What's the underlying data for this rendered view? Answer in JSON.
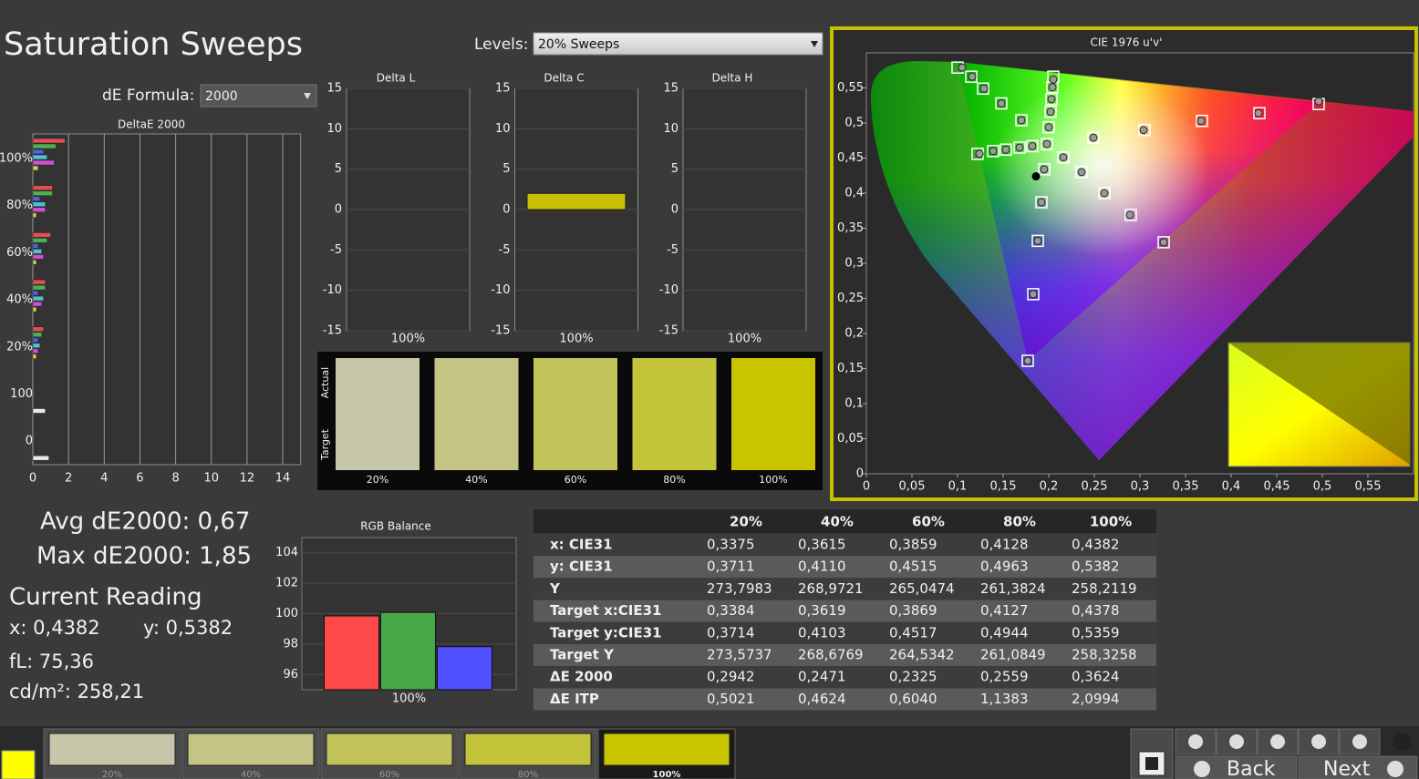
{
  "header": {
    "title": "Saturation Sweeps",
    "levels_label": "Levels:",
    "levels_value": "20% Sweeps",
    "formula_label": "dE Formula:",
    "formula_value": "2000"
  },
  "deltae": {
    "type": "hbar",
    "title": "DeltaE 2000",
    "categories": [
      "100%",
      "80%",
      "60%",
      "40%",
      "20%",
      "100",
      "0"
    ],
    "xlim": [
      0,
      15
    ],
    "xticks": [
      0,
      2,
      4,
      6,
      8,
      10,
      12,
      14
    ],
    "grid": true,
    "series": [
      {
        "color": "#e05050",
        "values": [
          1.8,
          1.1,
          1.0,
          0.7,
          0.6,
          null,
          null
        ]
      },
      {
        "color": "#50b050",
        "values": [
          1.3,
          1.1,
          0.8,
          0.7,
          0.5,
          null,
          null
        ]
      },
      {
        "color": "#5060e0",
        "values": [
          0.6,
          0.4,
          0.3,
          0.3,
          0.3,
          null,
          null
        ]
      },
      {
        "color": "#50c0d0",
        "values": [
          0.8,
          0.7,
          0.5,
          0.6,
          0.4,
          null,
          null
        ]
      },
      {
        "color": "#d050d0",
        "values": [
          1.2,
          0.7,
          0.6,
          0.5,
          0.3,
          null,
          null
        ]
      },
      {
        "color": "#d0d050",
        "values": [
          0.3,
          0.2,
          0.2,
          0.2,
          0.2,
          null,
          null
        ]
      },
      {
        "color": "#e8e8e8",
        "values": [
          null,
          null,
          null,
          null,
          null,
          0.7,
          0.9
        ]
      }
    ]
  },
  "delta_charts": [
    {
      "type": "bar",
      "title": "Delta L",
      "categories": [
        "100%"
      ],
      "values": [
        0
      ],
      "color": "#c8c000",
      "ylim": [
        -15,
        15
      ],
      "yticks": [
        15,
        10,
        5,
        0,
        -5,
        -10,
        -15
      ],
      "grid": true
    },
    {
      "type": "bar",
      "title": "Delta C",
      "categories": [
        "100%"
      ],
      "values": [
        2
      ],
      "color": "#c8c000",
      "ylim": [
        -15,
        15
      ],
      "yticks": [
        15,
        10,
        5,
        0,
        -5,
        -10,
        -15
      ],
      "grid": true
    },
    {
      "type": "bar",
      "title": "Delta H",
      "categories": [
        "100%"
      ],
      "values": [
        0
      ],
      "color": "#c8c000",
      "ylim": [
        -15,
        15
      ],
      "yticks": [
        15,
        10,
        5,
        0,
        -5,
        -10,
        -15
      ],
      "grid": true
    }
  ],
  "swatches": {
    "actual_label": "Actual",
    "target_label": "Target",
    "labels": [
      "20%",
      "40%",
      "60%",
      "80%",
      "100%"
    ],
    "actual_colors": [
      "#c6c6a8",
      "#c4c484",
      "#c3c35c",
      "#c4c43a",
      "#c8c400"
    ],
    "target_colors": [
      "#c6c6a8",
      "#c4c484",
      "#c3c35c",
      "#c4c43a",
      "#c8c400"
    ]
  },
  "stats": {
    "avg": "Avg dE2000: 0,67",
    "max": "Max dE2000: 1,85",
    "current_title": "Current Reading",
    "x": "x: 0,4382",
    "y": "y: 0,5382",
    "fl": "fL: 75,36",
    "cdm2": "cd/m²: 258,21"
  },
  "rgb_balance": {
    "type": "bar",
    "title": "RGB Balance",
    "categories": [
      "100%"
    ],
    "series": [
      {
        "color": "#ff4848",
        "values": [
          99.85
        ]
      },
      {
        "color": "#48a848",
        "values": [
          100.08
        ]
      },
      {
        "color": "#5050ff",
        "values": [
          97.83
        ]
      }
    ],
    "ylim": [
      95,
      105
    ],
    "yticks": [
      96,
      98,
      100,
      102,
      104
    ],
    "grid": true
  },
  "table": {
    "header": [
      "20%",
      "40%",
      "60%",
      "80%",
      "100%"
    ],
    "rows": [
      [
        "x: CIE31",
        "0,3375",
        "0,3615",
        "0,3859",
        "0,4128",
        "0,4382"
      ],
      [
        "y: CIE31",
        "0,3711",
        "0,4110",
        "0,4515",
        "0,4963",
        "0,5382"
      ],
      [
        "Y",
        "273,7983",
        "268,9721",
        "265,0474",
        "261,3824",
        "258,2119"
      ],
      [
        "Target x:CIE31",
        "0,3384",
        "0,3619",
        "0,3869",
        "0,4127",
        "0,4378"
      ],
      [
        "Target y:CIE31",
        "0,3714",
        "0,4103",
        "0,4517",
        "0,4944",
        "0,5359"
      ],
      [
        "Target Y",
        "273,5737",
        "268,6769",
        "264,5342",
        "261,0849",
        "258,3258"
      ],
      [
        "ΔE 2000",
        "0,2942",
        "0,2471",
        "0,2325",
        "0,2559",
        "0,3624"
      ],
      [
        "ΔE ITP",
        "0,5021",
        "0,4624",
        "0,6040",
        "1,1383",
        "2,0994"
      ]
    ]
  },
  "cie": {
    "type": "scatter",
    "title": "CIE 1976 u'v'",
    "xlim": [
      0,
      0.6
    ],
    "ylim": [
      0,
      0.6
    ],
    "xticks": [
      0,
      {
        "value": 0.05,
        "label": "0,05"
      },
      {
        "value": 0.1,
        "label": "0,1"
      },
      {
        "value": 0.15,
        "label": "0,15"
      },
      {
        "value": 0.2,
        "label": "0,2"
      },
      {
        "value": 0.25,
        "label": "0,25"
      },
      {
        "value": 0.3,
        "label": "0,3"
      },
      {
        "value": 0.35,
        "label": "0,35"
      },
      {
        "value": 0.4,
        "label": "0,4"
      },
      {
        "value": 0.45,
        "label": "0,45"
      },
      {
        "value": 0.5,
        "label": "0,5"
      },
      {
        "value": 0.55,
        "label": "0,55"
      }
    ],
    "yticks": [
      0,
      {
        "value": 0.05,
        "label": "0,05"
      },
      {
        "value": 0.1,
        "label": "0,1"
      },
      {
        "value": 0.15,
        "label": "0,15"
      },
      {
        "value": 0.2,
        "label": "0,2"
      },
      {
        "value": 0.25,
        "label": "0,25"
      },
      {
        "value": 0.3,
        "label": "0,3"
      },
      {
        "value": 0.35,
        "label": "0,35"
      },
      {
        "value": 0.4,
        "label": "0,4"
      },
      {
        "value": 0.45,
        "label": "0,45"
      },
      {
        "value": 0.5,
        "label": "0,5"
      },
      {
        "value": 0.55,
        "label": "0,55"
      }
    ],
    "series": [
      {
        "marker": "square",
        "color": "#ffffff",
        "x": [
          0.1,
          0.115,
          0.128,
          0.148,
          0.17,
          0.205,
          0.204,
          0.203,
          0.202,
          0.2,
          0.496,
          0.431,
          0.368,
          0.305,
          0.249,
          0.326,
          0.29,
          0.261,
          0.236,
          0.216,
          0.177,
          0.183,
          0.188,
          0.192,
          0.195,
          0.122,
          0.139,
          0.153,
          0.168,
          0.182,
          0.198
        ],
        "values": [
          0.579,
          0.566,
          0.549,
          0.528,
          0.504,
          0.566,
          0.551,
          0.534,
          0.516,
          0.494,
          0.527,
          0.514,
          0.503,
          0.49,
          0.479,
          0.33,
          0.369,
          0.4,
          0.43,
          0.451,
          0.161,
          0.256,
          0.332,
          0.387,
          0.434,
          0.456,
          0.46,
          0.462,
          0.465,
          0.467,
          0.47
        ]
      },
      {
        "marker": "circle",
        "color": "#9a9a9a",
        "x": [
          0.105,
          0.116,
          0.129,
          0.148,
          0.17,
          0.205,
          0.204,
          0.203,
          0.202,
          0.2,
          0.496,
          0.43,
          0.367,
          0.304,
          0.249,
          0.326,
          0.289,
          0.261,
          0.236,
          0.216,
          0.177,
          0.183,
          0.188,
          0.192,
          0.195,
          0.124,
          0.139,
          0.153,
          0.168,
          0.182,
          0.198
        ],
        "values": [
          0.579,
          0.566,
          0.549,
          0.528,
          0.504,
          0.562,
          0.551,
          0.534,
          0.516,
          0.494,
          0.531,
          0.514,
          0.503,
          0.49,
          0.479,
          0.33,
          0.369,
          0.4,
          0.43,
          0.451,
          0.161,
          0.256,
          0.332,
          0.387,
          0.434,
          0.456,
          0.46,
          0.462,
          0.465,
          0.467,
          0.47
        ]
      },
      {
        "marker": "dot",
        "color": "#000000",
        "x": [
          0.186
        ],
        "values": [
          0.424
        ]
      }
    ]
  },
  "footer": {
    "swatch_labels": [
      "20%",
      "40%",
      "60%",
      "80%",
      "100%"
    ],
    "swatch_colors": [
      "#c6c6a8",
      "#c4c484",
      "#c3c35c",
      "#c4c43a",
      "#c8c400"
    ],
    "back": "Back",
    "next": "Next"
  }
}
